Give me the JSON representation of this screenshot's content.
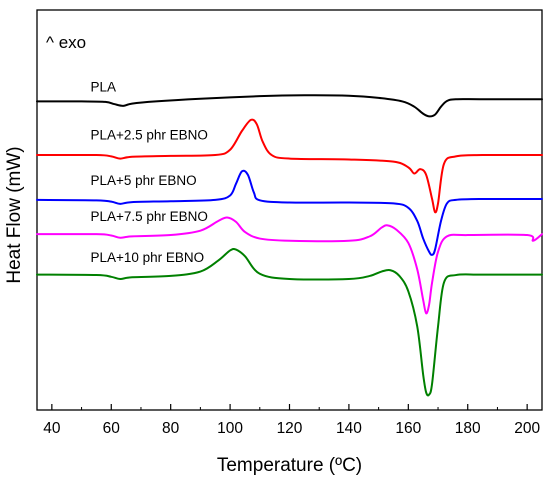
{
  "chart_data": {
    "type": "line",
    "title": "",
    "annotation": "^ exo",
    "xlabel": "Temperature (ºC)",
    "ylabel": "Heat Flow (mW)",
    "xlim": [
      35,
      205
    ],
    "ylim": [
      -9.1,
      0
    ],
    "xticks": [
      40,
      60,
      80,
      100,
      120,
      140,
      160,
      180,
      200
    ],
    "yticks_shown": false,
    "series": [
      {
        "name": "PLA",
        "color": "#000000",
        "x": [
          35,
          50,
          58,
          61,
          64,
          67,
          75,
          90,
          110,
          125,
          140,
          150,
          158,
          162,
          165,
          167,
          169,
          171,
          173,
          176,
          185,
          205
        ],
        "y": [
          -2.08,
          -2.08,
          -2.09,
          -2.14,
          -2.18,
          -2.13,
          -2.08,
          -2.02,
          -1.96,
          -1.94,
          -1.95,
          -2.0,
          -2.08,
          -2.2,
          -2.36,
          -2.42,
          -2.38,
          -2.2,
          -2.07,
          -2.03,
          -2.03,
          -2.03
        ]
      },
      {
        "name": "PLA+2.5 phr EBNO",
        "color": "#ff0000",
        "x": [
          35,
          55,
          60,
          63,
          67,
          80,
          95,
          100,
          104,
          107,
          109,
          111,
          114,
          120,
          140,
          155,
          160,
          162,
          164,
          166,
          168,
          169,
          170,
          172,
          176,
          185,
          205
        ],
        "y": [
          -3.3,
          -3.3,
          -3.33,
          -3.38,
          -3.34,
          -3.32,
          -3.3,
          -3.18,
          -2.75,
          -2.5,
          -2.6,
          -3.0,
          -3.3,
          -3.38,
          -3.4,
          -3.45,
          -3.58,
          -3.72,
          -3.62,
          -3.75,
          -4.3,
          -4.6,
          -4.4,
          -3.5,
          -3.33,
          -3.3,
          -3.3
        ]
      },
      {
        "name": "PLA+5 phr EBNO",
        "color": "#0000ff",
        "x": [
          35,
          55,
          60,
          63,
          67,
          80,
          95,
          100,
          102,
          104,
          106,
          108,
          110,
          120,
          140,
          155,
          160,
          163,
          165,
          167,
          168,
          169,
          171,
          173,
          176,
          185,
          205
        ],
        "y": [
          -4.32,
          -4.33,
          -4.36,
          -4.41,
          -4.37,
          -4.35,
          -4.32,
          -4.22,
          -3.95,
          -3.67,
          -3.75,
          -4.15,
          -4.33,
          -4.38,
          -4.38,
          -4.4,
          -4.5,
          -4.8,
          -5.2,
          -5.5,
          -5.57,
          -5.45,
          -4.8,
          -4.4,
          -4.32,
          -4.3,
          -4.3
        ]
      },
      {
        "name": "PLA+7.5 phr EBNO",
        "color": "#ff00ff",
        "x": [
          35,
          55,
          60,
          63,
          67,
          80,
          90,
          96,
          99,
          102,
          105,
          110,
          120,
          140,
          147,
          151,
          153,
          156,
          160,
          163,
          165,
          166,
          167,
          168,
          170,
          173,
          180,
          200,
          202,
          205
        ],
        "y": [
          -5.1,
          -5.1,
          -5.13,
          -5.18,
          -5.15,
          -5.12,
          -5.02,
          -4.8,
          -4.72,
          -4.82,
          -5.05,
          -5.2,
          -5.25,
          -5.25,
          -5.15,
          -4.95,
          -4.9,
          -5.0,
          -5.3,
          -5.9,
          -6.6,
          -6.9,
          -6.7,
          -6.2,
          -5.5,
          -5.15,
          -5.12,
          -5.12,
          -5.25,
          -5.1
        ]
      },
      {
        "name": "PLA+10 phr EBNO",
        "color": "#008000",
        "x": [
          35,
          55,
          60,
          63,
          67,
          80,
          90,
          96,
          100,
          102,
          105,
          110,
          120,
          140,
          147,
          151,
          154,
          157,
          160,
          163,
          165,
          166,
          167,
          168,
          170,
          172,
          176,
          185,
          205
        ],
        "y": [
          -6.02,
          -6.03,
          -6.07,
          -6.12,
          -6.08,
          -6.05,
          -5.95,
          -5.7,
          -5.47,
          -5.45,
          -5.6,
          -6.0,
          -6.12,
          -6.12,
          -6.05,
          -5.95,
          -5.92,
          -6.05,
          -6.4,
          -7.2,
          -8.3,
          -8.7,
          -8.75,
          -8.5,
          -7.2,
          -6.2,
          -6.03,
          -6.02,
          -6.02
        ]
      }
    ],
    "series_labels": [
      {
        "text": "PLA",
        "x": 53,
        "y": -1.85
      },
      {
        "text": "PLA+2.5 phr EBNO",
        "x": 53,
        "y": -2.95
      },
      {
        "text": "PLA+5 phr EBNO",
        "x": 53,
        "y": -3.98
      },
      {
        "text": "PLA+7.5 phr EBNO",
        "x": 53,
        "y": -4.8
      },
      {
        "text": "PLA+10 phr EBNO",
        "x": 53,
        "y": -5.73
      }
    ]
  }
}
